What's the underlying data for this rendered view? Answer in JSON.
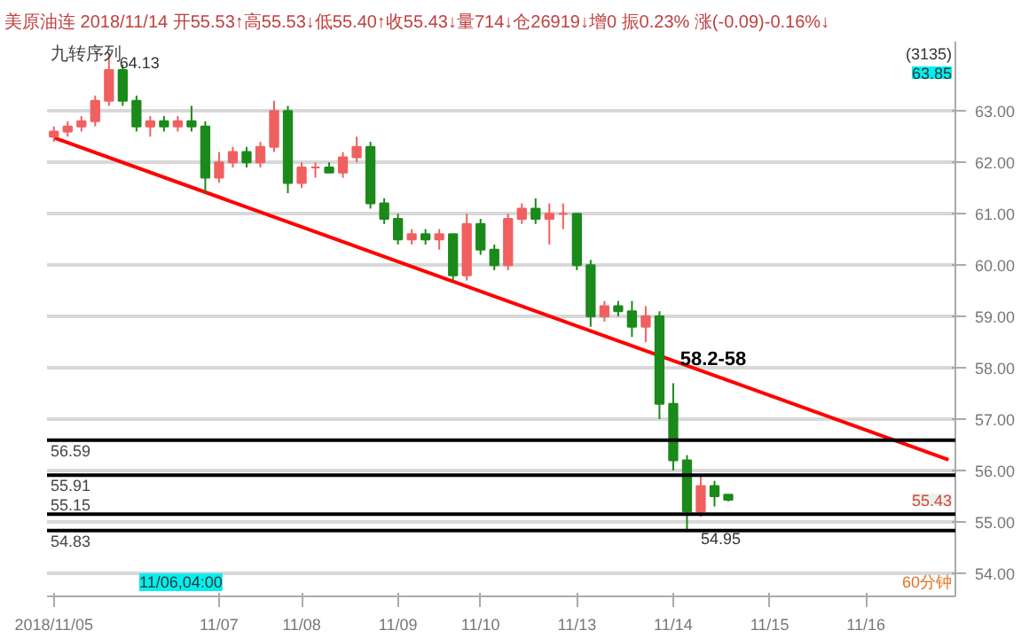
{
  "chart_data": {
    "type": "candlestick",
    "title": "美原油连 2018/11/14 开55.53↑高55.53↓低55.40↑收55.43↓量714↓仓26919↓增0 振0.23% 涨(-0.09)-0.16%↓",
    "subtitle": "九转序列",
    "categories": [
      "2018/11/05",
      null,
      null,
      null,
      null,
      null,
      null,
      null,
      null,
      null,
      null,
      null,
      "11/07",
      null,
      null,
      null,
      null,
      null,
      "11/08",
      null,
      null,
      null,
      null,
      null,
      null,
      "11/09",
      null,
      null,
      null,
      null,
      null,
      "11/10",
      null,
      null,
      null,
      null,
      null,
      null,
      "11/13",
      null,
      null,
      null,
      null,
      null,
      null,
      "11/14",
      null,
      null,
      null,
      null,
      null,
      null,
      "11/15",
      null,
      null,
      null,
      null,
      null,
      null,
      "11/16",
      null,
      null,
      null,
      null,
      null,
      null
    ],
    "ohlc": [
      [
        62.5,
        62.7,
        62.4,
        62.6
      ],
      [
        62.6,
        62.8,
        62.5,
        62.7
      ],
      [
        62.7,
        62.9,
        62.6,
        62.8
      ],
      [
        62.8,
        63.3,
        62.7,
        63.2
      ],
      [
        63.2,
        64.13,
        63.1,
        63.8
      ],
      [
        63.8,
        63.9,
        63.1,
        63.2
      ],
      [
        63.2,
        63.3,
        62.6,
        62.7
      ],
      [
        62.7,
        62.9,
        62.5,
        62.8
      ],
      [
        62.8,
        62.9,
        62.6,
        62.7
      ],
      [
        62.7,
        62.9,
        62.6,
        62.8
      ],
      [
        62.8,
        63.1,
        62.6,
        62.7
      ],
      [
        62.7,
        62.8,
        61.4,
        61.7
      ],
      [
        61.7,
        62.2,
        61.6,
        62.0
      ],
      [
        62.0,
        62.3,
        61.9,
        62.2
      ],
      [
        62.2,
        62.3,
        61.9,
        62.0
      ],
      [
        62.0,
        62.4,
        61.9,
        62.3
      ],
      [
        62.3,
        63.2,
        62.2,
        63.0
      ],
      [
        63.0,
        63.1,
        61.4,
        61.6
      ],
      [
        61.6,
        62.0,
        61.5,
        61.9
      ],
      [
        61.9,
        62.0,
        61.7,
        61.9
      ],
      [
        61.9,
        62.0,
        61.8,
        61.8
      ],
      [
        61.8,
        62.2,
        61.7,
        62.1
      ],
      [
        62.1,
        62.5,
        62.0,
        62.3
      ],
      [
        62.3,
        62.4,
        61.1,
        61.2
      ],
      [
        61.2,
        61.3,
        60.8,
        60.9
      ],
      [
        60.9,
        61.0,
        60.4,
        60.5
      ],
      [
        60.5,
        60.7,
        60.4,
        60.6
      ],
      [
        60.6,
        60.7,
        60.4,
        60.5
      ],
      [
        60.5,
        60.7,
        60.3,
        60.6
      ],
      [
        60.6,
        60.6,
        59.7,
        59.8
      ],
      [
        59.8,
        61.0,
        59.7,
        60.8
      ],
      [
        60.8,
        60.9,
        60.2,
        60.3
      ],
      [
        60.3,
        60.4,
        59.9,
        60.0
      ],
      [
        60.0,
        61.0,
        59.9,
        60.9
      ],
      [
        60.9,
        61.2,
        60.8,
        61.1
      ],
      [
        61.1,
        61.3,
        60.8,
        60.9
      ],
      [
        60.9,
        61.2,
        60.4,
        61.0
      ],
      [
        61.0,
        61.2,
        60.7,
        61.0
      ],
      [
        61.0,
        61.0,
        59.9,
        60.0
      ],
      [
        60.0,
        60.1,
        58.8,
        59.0
      ],
      [
        59.0,
        59.3,
        58.9,
        59.2
      ],
      [
        59.2,
        59.3,
        59.0,
        59.1
      ],
      [
        59.1,
        59.3,
        58.6,
        58.8
      ],
      [
        58.8,
        59.2,
        58.5,
        59.0
      ],
      [
        59.0,
        59.1,
        57.0,
        57.3
      ],
      [
        57.3,
        57.7,
        56.0,
        56.2
      ],
      [
        56.2,
        56.3,
        54.83,
        55.2
      ],
      [
        55.2,
        55.9,
        55.1,
        55.7
      ],
      [
        55.7,
        55.8,
        55.3,
        55.5
      ],
      [
        55.53,
        55.53,
        55.4,
        55.43
      ],
      null,
      null,
      null,
      null,
      null,
      null,
      null,
      null,
      null,
      null,
      null,
      null,
      null,
      null,
      null,
      null
    ],
    "colors": [
      "#f06060",
      "#f06060",
      "#f06060",
      "#f06060",
      "#f06060",
      "#1a8a1a",
      "#1a8a1a",
      "#f06060",
      "#1a8a1a",
      "#f06060",
      "#1a8a1a",
      "#1a8a1a",
      "#f06060",
      "#f06060",
      "#1a8a1a",
      "#f06060",
      "#f06060",
      "#1a8a1a",
      "#f06060",
      "#f06060",
      "#1a8a1a",
      "#f06060",
      "#f06060",
      "#1a8a1a",
      "#1a8a1a",
      "#1a8a1a",
      "#f06060",
      "#1a8a1a",
      "#f06060",
      "#1a8a1a",
      "#f06060",
      "#1a8a1a",
      "#1a8a1a",
      "#f06060",
      "#f06060",
      "#1a8a1a",
      "#f06060",
      "#f06060",
      "#1a8a1a",
      "#1a8a1a",
      "#f06060",
      "#1a8a1a",
      "#1a8a1a",
      "#f06060",
      "#1a8a1a",
      "#1a8a1a",
      "#1a8a1a",
      "#f06060",
      "#1a8a1a",
      "#1a8a1a",
      null,
      null,
      null,
      null,
      null,
      null,
      null,
      null,
      null,
      null,
      null,
      null,
      null,
      null,
      null,
      null
    ],
    "series": [
      {
        "type": "line",
        "color": "#ff0000",
        "values": [
          62.48,
          null,
          null,
          null,
          null,
          null,
          null,
          null,
          null,
          null,
          null,
          null,
          null,
          null,
          null,
          null,
          null,
          null,
          null,
          null,
          null,
          null,
          null,
          null,
          null,
          null,
          null,
          null,
          null,
          null,
          null,
          null,
          null,
          null,
          null,
          null,
          null,
          null,
          null,
          null,
          null,
          null,
          null,
          null,
          null,
          null,
          null,
          null,
          null,
          null,
          null,
          null,
          null,
          null,
          null,
          null,
          null,
          null,
          null,
          null,
          null,
          null,
          null,
          null,
          null,
          56.21
        ]
      }
    ],
    "ylim": [
      53.55,
      64.35
    ],
    "yticks": [
      {
        "value": 54,
        "label": "54.00"
      },
      {
        "value": 55,
        "label": "55.00"
      },
      {
        "value": 56,
        "label": "56.00"
      },
      {
        "value": 57,
        "label": "57.00"
      },
      {
        "value": 58,
        "label": "58.00"
      },
      {
        "value": 59,
        "label": "59.00"
      },
      {
        "value": 60,
        "label": "60.00"
      },
      {
        "value": 61,
        "label": "61.00"
      },
      {
        "value": 62,
        "label": "62.00"
      },
      {
        "value": 63,
        "label": "63.00"
      }
    ],
    "grid": "y",
    "ref_lines": [
      {
        "axis": "y",
        "value": 56.59,
        "label": "56.59",
        "color": "#000000"
      },
      {
        "axis": "y",
        "value": 55.91,
        "label": "55.91",
        "color": "#000000"
      },
      {
        "axis": "y",
        "value": 55.15,
        "label": "55.15",
        "color": "#000000"
      },
      {
        "axis": "y",
        "value": 54.83,
        "label": "54.83",
        "color": "#000000"
      }
    ],
    "annotations": [
      "(3135)",
      "63.85",
      "60分钟",
      "11/06,04:00",
      "64.13",
      "58.2-58",
      "55.43",
      {
        "text": "54.95",
        "y": 54.95
      }
    ]
  }
}
